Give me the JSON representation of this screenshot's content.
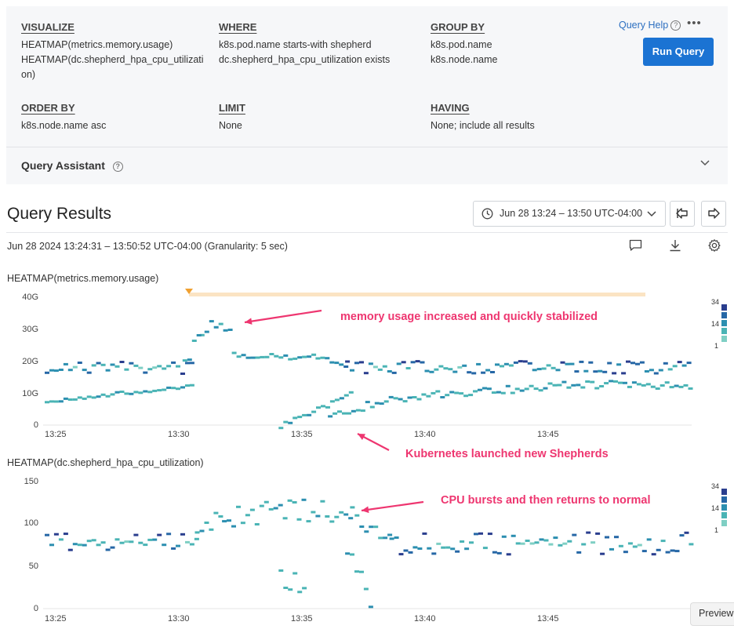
{
  "query": {
    "visualize": {
      "label": "VISUALIZE",
      "lines": [
        "HEATMAP(metrics.memory.usage)",
        "HEATMAP(dc.shepherd_hpa_cpu_utilizati",
        "on)"
      ]
    },
    "where": {
      "label": "WHERE",
      "lines": [
        "k8s.pod.name starts-with shepherd",
        "dc.shepherd_hpa_cpu_utilization exists"
      ]
    },
    "group_by": {
      "label": "GROUP BY",
      "lines": [
        "k8s.pod.name",
        "k8s.node.name"
      ]
    },
    "order_by": {
      "label": "ORDER BY",
      "value": "k8s.node.name asc"
    },
    "limit": {
      "label": "LIMIT",
      "value": "None"
    },
    "having": {
      "label": "HAVING",
      "value": "None; include all results"
    },
    "help_label": "Query Help",
    "more_icon": "more-horizontal-icon",
    "run_label": "Run Query",
    "assistant_label": "Query Assistant"
  },
  "results": {
    "title": "Query Results",
    "time_range": "Jun 28 13:24 – 13:50 UTC-04:00",
    "range_text": "Jun 28 2024 13:24:31 – 13:50:52 UTC-04:00 (Granularity: 5 sec)"
  },
  "colors": {
    "accent": "#1b73d3",
    "annotation": "#ee3670",
    "heat": [
      "#2a3e8e",
      "#2667a6",
      "#2c8fb0",
      "#4ab4b5",
      "#7fcfc4"
    ]
  },
  "chart_data": [
    {
      "type": "heatmap",
      "title": "HEATMAP(metrics.memory.usage)",
      "y_tick_labels": [
        "0",
        "10G",
        "20G",
        "30G",
        "40G"
      ],
      "x_tick_labels": [
        "13:25",
        "13:30",
        "13:35",
        "13:40",
        "13:45"
      ],
      "y_range": [
        0,
        40
      ],
      "y_unit": "G",
      "legend_labels": [
        "34",
        "14",
        "1"
      ],
      "annotations": [
        "memory usage increased and quickly stabilized",
        "Kubernetes launched new Shepherds"
      ]
    },
    {
      "type": "heatmap",
      "title": "HEATMAP(dc.shepherd_hpa_cpu_utilization)",
      "y_tick_labels": [
        "0",
        "50",
        "100",
        "150"
      ],
      "x_tick_labels": [
        "13:25",
        "13:30",
        "13:35",
        "13:40",
        "13:45"
      ],
      "y_range": [
        0,
        150
      ],
      "legend_labels": [
        "34",
        "14",
        "1"
      ],
      "annotations": [
        "CPU bursts and then returns to normal"
      ]
    }
  ],
  "preview_label": "Preview"
}
